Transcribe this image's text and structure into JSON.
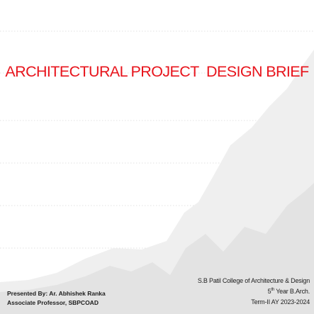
{
  "slide": {
    "title": "ARCHITECTURAL PROJECT  DESIGN BRIEF",
    "presenter": {
      "line1": "Presented By: Ar. Abhishek Ranka",
      "line2": "Associate Professor, SBPCOAD"
    },
    "institution": {
      "college": "S.B Patil College of Architecture & Design",
      "year_number": "5",
      "year_suffix": "th",
      "year_rest": " Year B.Arch.",
      "term": "Term-II AY 2023-2024"
    },
    "colors": {
      "title": "#e8141c",
      "text": "#1e1e1e",
      "chart_light": "#eeeeee",
      "chart_dark": "#e2e2e2"
    }
  }
}
